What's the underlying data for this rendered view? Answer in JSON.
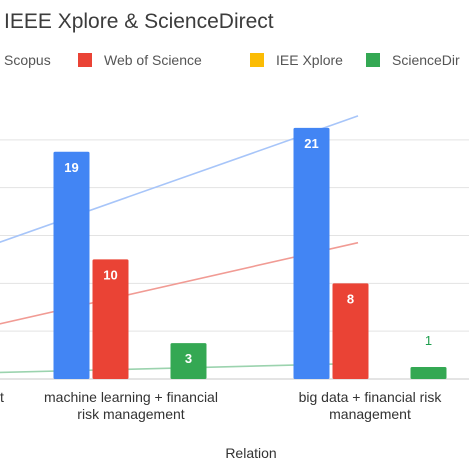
{
  "chart_data": {
    "type": "bar",
    "title": "IEEE Xplore & ScienceDirect",
    "xlabel": "Relation",
    "ylabel": "",
    "ylim": [
      0,
      24
    ],
    "legend_position": "top",
    "grid": true,
    "categories": [
      "t",
      "machine learning + financial risk management",
      "big data + financial risk management"
    ],
    "category_lines": [
      [
        "t"
      ],
      [
        "machine learning  + financial",
        "risk management"
      ],
      [
        "big data + financial risk",
        "management"
      ]
    ],
    "series": [
      {
        "name": "Scopus",
        "color": "#4285f4",
        "values": [
          null,
          19,
          21
        ]
      },
      {
        "name": "Web of Science",
        "color": "#ea4335",
        "values": [
          null,
          10,
          8
        ]
      },
      {
        "name": "IEE Xplore",
        "color": "#fbbc04",
        "values": [
          null,
          0,
          0
        ]
      },
      {
        "name": "ScienceDir",
        "color": "#34a853",
        "values": [
          null,
          3,
          1
        ]
      }
    ],
    "data_labels": [
      {
        "series": 0,
        "category": 1,
        "text": "19"
      },
      {
        "series": 1,
        "category": 1,
        "text": "10"
      },
      {
        "series": 3,
        "category": 1,
        "text": "3"
      },
      {
        "series": 0,
        "category": 2,
        "text": "21"
      },
      {
        "series": 1,
        "category": 2,
        "text": "8"
      },
      {
        "series": 3,
        "category": 2,
        "text": "1"
      }
    ],
    "trendlines": [
      {
        "series": 0,
        "color": "#a7c5f9",
        "from": [
          0,
          10.8
        ],
        "to": [
          2.5,
          22.0
        ]
      },
      {
        "series": 1,
        "color": "#f19b94",
        "from": [
          0,
          4.2
        ],
        "to": [
          2.5,
          11.4
        ]
      },
      {
        "series": 3,
        "color": "#9bd3ae",
        "from": [
          0,
          0.5
        ],
        "to": [
          2.5,
          1.3
        ]
      }
    ]
  }
}
